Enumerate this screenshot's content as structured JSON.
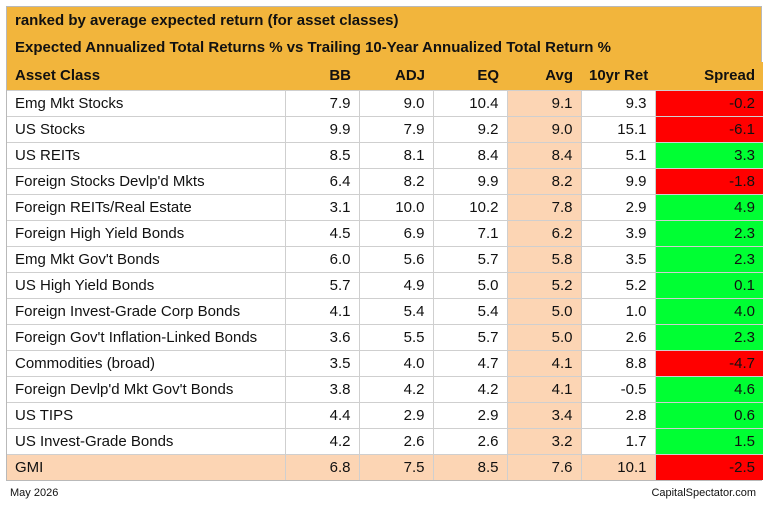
{
  "header": {
    "subtitle": "ranked by average expected return (for asset classes)",
    "title": "Expected Annualized Total Returns % vs Trailing 10-Year Annualized Total Return %"
  },
  "columns": [
    "Asset Class",
    "BB",
    "ADJ",
    "EQ",
    "Avg",
    "10yr Ret",
    "Spread"
  ],
  "rows": [
    {
      "asset": "Emg Mkt Stocks",
      "bb": "7.9",
      "adj": "9.0",
      "eq": "10.4",
      "avg": "9.1",
      "ret10": "9.3",
      "spread": "-0.2",
      "sign": "neg"
    },
    {
      "asset": "US Stocks",
      "bb": "9.9",
      "adj": "7.9",
      "eq": "9.2",
      "avg": "9.0",
      "ret10": "15.1",
      "spread": "-6.1",
      "sign": "neg"
    },
    {
      "asset": "US REITs",
      "bb": "8.5",
      "adj": "8.1",
      "eq": "8.4",
      "avg": "8.4",
      "ret10": "5.1",
      "spread": "3.3",
      "sign": "pos"
    },
    {
      "asset": "Foreign Stocks Devlp'd Mkts",
      "bb": "6.4",
      "adj": "8.2",
      "eq": "9.9",
      "avg": "8.2",
      "ret10": "9.9",
      "spread": "-1.8",
      "sign": "neg"
    },
    {
      "asset": "Foreign REITs/Real Estate",
      "bb": "3.1",
      "adj": "10.0",
      "eq": "10.2",
      "avg": "7.8",
      "ret10": "2.9",
      "spread": "4.9",
      "sign": "pos"
    },
    {
      "asset": "Foreign High Yield Bonds",
      "bb": "4.5",
      "adj": "6.9",
      "eq": "7.1",
      "avg": "6.2",
      "ret10": "3.9",
      "spread": "2.3",
      "sign": "pos"
    },
    {
      "asset": "Emg Mkt Gov't Bonds",
      "bb": "6.0",
      "adj": "5.6",
      "eq": "5.7",
      "avg": "5.8",
      "ret10": "3.5",
      "spread": "2.3",
      "sign": "pos"
    },
    {
      "asset": "US High Yield Bonds",
      "bb": "5.7",
      "adj": "4.9",
      "eq": "5.0",
      "avg": "5.2",
      "ret10": "5.2",
      "spread": "0.1",
      "sign": "pos"
    },
    {
      "asset": "Foreign Invest-Grade Corp Bonds",
      "bb": "4.1",
      "adj": "5.4",
      "eq": "5.4",
      "avg": "5.0",
      "ret10": "1.0",
      "spread": "4.0",
      "sign": "pos"
    },
    {
      "asset": "Foreign Gov't Inflation-Linked Bonds",
      "bb": "3.6",
      "adj": "5.5",
      "eq": "5.7",
      "avg": "5.0",
      "ret10": "2.6",
      "spread": "2.3",
      "sign": "pos"
    },
    {
      "asset": "Commodities (broad)",
      "bb": "3.5",
      "adj": "4.0",
      "eq": "4.7",
      "avg": "4.1",
      "ret10": "8.8",
      "spread": "-4.7",
      "sign": "neg"
    },
    {
      "asset": "Foreign Devlp'd Mkt Gov't Bonds",
      "bb": "3.8",
      "adj": "4.2",
      "eq": "4.2",
      "avg": "4.1",
      "ret10": "-0.5",
      "spread": "4.6",
      "sign": "pos"
    },
    {
      "asset": "US TIPS",
      "bb": "4.4",
      "adj": "2.9",
      "eq": "2.9",
      "avg": "3.4",
      "ret10": "2.8",
      "spread": "0.6",
      "sign": "pos"
    },
    {
      "asset": "US Invest-Grade Bonds",
      "bb": "4.2",
      "adj": "2.6",
      "eq": "2.6",
      "avg": "3.2",
      "ret10": "1.7",
      "spread": "1.5",
      "sign": "pos"
    }
  ],
  "gmi": {
    "asset": "GMI",
    "bb": "6.8",
    "adj": "7.5",
    "eq": "8.5",
    "avg": "7.6",
    "ret10": "10.1",
    "spread": "-2.5",
    "sign": "neg"
  },
  "footer": {
    "date": "May 2026",
    "source": "CapitalSpectator.com"
  },
  "colors": {
    "header": "#f2b53c",
    "avg": "#fcd5b4",
    "positive": "#00ff33",
    "negative": "#ff0000"
  }
}
